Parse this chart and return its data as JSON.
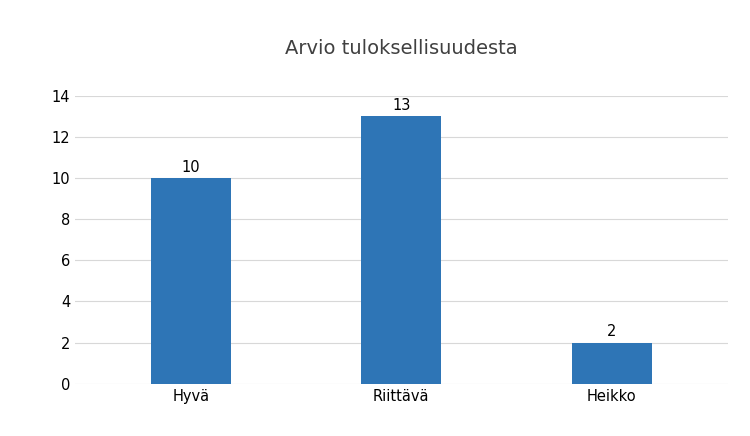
{
  "title": "Arvio tuloksellisuudesta",
  "categories": [
    "Hyvä",
    "Riittävä",
    "Heikko"
  ],
  "values": [
    10,
    13,
    2
  ],
  "bar_color": "#2E75B6",
  "ylim": [
    0,
    14
  ],
  "yticks": [
    0,
    2,
    4,
    6,
    8,
    10,
    12,
    14
  ],
  "title_fontsize": 14,
  "tick_fontsize": 10.5,
  "value_label_fontsize": 10.5,
  "background_color": "#FFFFFF",
  "grid_color": "#D8D8D8",
  "bar_width": 0.38,
  "title_color": "#404040"
}
